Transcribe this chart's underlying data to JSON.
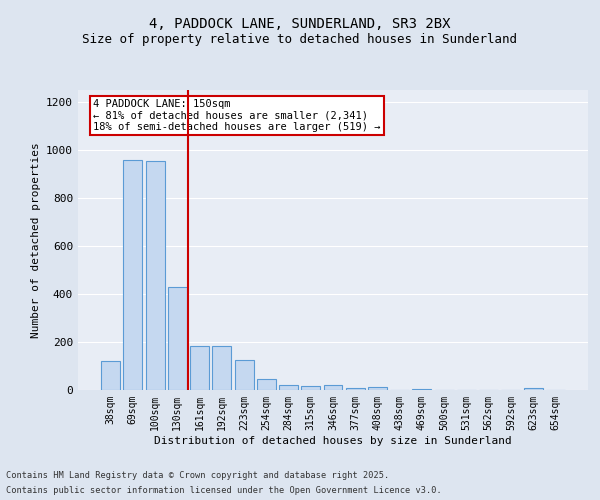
{
  "title1": "4, PADDOCK LANE, SUNDERLAND, SR3 2BX",
  "title2": "Size of property relative to detached houses in Sunderland",
  "xlabel": "Distribution of detached houses by size in Sunderland",
  "ylabel": "Number of detached properties",
  "categories": [
    "38sqm",
    "69sqm",
    "100sqm",
    "130sqm",
    "161sqm",
    "192sqm",
    "223sqm",
    "254sqm",
    "284sqm",
    "315sqm",
    "346sqm",
    "377sqm",
    "408sqm",
    "438sqm",
    "469sqm",
    "500sqm",
    "531sqm",
    "562sqm",
    "592sqm",
    "623sqm",
    "654sqm"
  ],
  "values": [
    120,
    960,
    955,
    430,
    185,
    185,
    125,
    45,
    20,
    15,
    20,
    10,
    12,
    0,
    5,
    0,
    0,
    0,
    0,
    8,
    0
  ],
  "bar_color": "#c5d8f0",
  "bar_edge_color": "#5b9bd5",
  "vline_color": "#cc0000",
  "vline_pos": 3.5,
  "annotation_title": "4 PADDOCK LANE: 150sqm",
  "annotation_line1": "← 81% of detached houses are smaller (2,341)",
  "annotation_line2": "18% of semi-detached houses are larger (519) →",
  "annotation_box_color": "#ffffff",
  "annotation_box_edge": "#cc0000",
  "ylim": [
    0,
    1250
  ],
  "yticks": [
    0,
    200,
    400,
    600,
    800,
    1000,
    1200
  ],
  "footer1": "Contains HM Land Registry data © Crown copyright and database right 2025.",
  "footer2": "Contains public sector information licensed under the Open Government Licence v3.0.",
  "bg_color": "#dde5f0",
  "plot_bg_color": "#e8edf5",
  "grid_color": "#ffffff",
  "title_fontsize": 10,
  "subtitle_fontsize": 9
}
